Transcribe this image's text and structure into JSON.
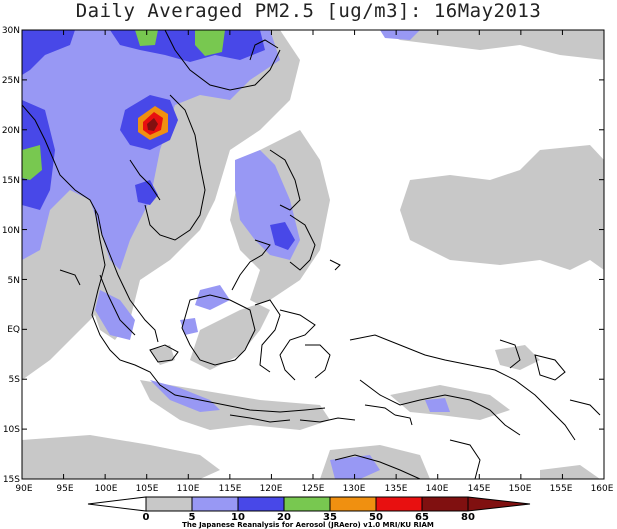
{
  "title": "Daily Averaged PM2.5 [ug/m3]: 16May2013",
  "map": {
    "lat_labels": [
      "30N",
      "25N",
      "20N",
      "15N",
      "10N",
      "5N",
      "EQ",
      "5S",
      "10S",
      "15S"
    ],
    "lon_labels": [
      "90E",
      "95E",
      "100E",
      "105E",
      "110E",
      "115E",
      "120E",
      "125E",
      "130E",
      "135E",
      "140E",
      "145E",
      "150E",
      "155E",
      "160E"
    ]
  },
  "colorbar": {
    "labels": [
      "0",
      "5",
      "10",
      "20",
      "35",
      "50",
      "65",
      "80"
    ],
    "colors": [
      "#ffffff",
      "#c8c8c8",
      "#9898f4",
      "#4848e8",
      "#78c850",
      "#f09010",
      "#e81010",
      "#801010"
    ]
  },
  "credit": "The Japanese Reanalysis for Aerosol (JRAero) v1.0 MRI/KU RIAM"
}
